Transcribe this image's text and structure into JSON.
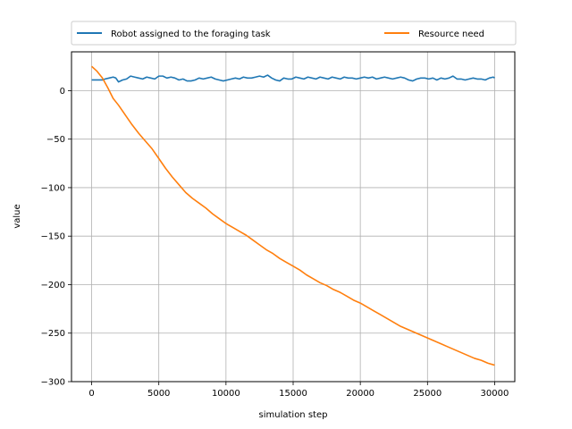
{
  "chart_data": {
    "type": "line",
    "title": "",
    "xlabel": "simulation step",
    "ylabel": "value",
    "xlim": [
      -1500,
      31500
    ],
    "ylim": [
      -300,
      40
    ],
    "grid": true,
    "legend_position": "top",
    "x_ticks": [
      0,
      5000,
      10000,
      15000,
      20000,
      25000,
      30000
    ],
    "x_tick_labels": [
      "0",
      "5000",
      "10000",
      "15000",
      "20000",
      "25000",
      "30000"
    ],
    "y_ticks": [
      0,
      -50,
      -100,
      -150,
      -200,
      -250,
      -300
    ],
    "y_tick_labels": [
      "0",
      "−50",
      "−100",
      "−150",
      "−200",
      "−250",
      "−300"
    ],
    "series": [
      {
        "name": "Robot assigned to the foraging task",
        "color": "#1f77b4",
        "x": [
          0,
          500,
          800,
          1000,
          1300,
          1600,
          1800,
          2000,
          2300,
          2600,
          2900,
          3200,
          3500,
          3800,
          4100,
          4400,
          4700,
          5000,
          5300,
          5600,
          5900,
          6200,
          6500,
          6800,
          7100,
          7400,
          7700,
          8000,
          8300,
          8600,
          8900,
          9200,
          9500,
          9800,
          10100,
          10400,
          10700,
          11000,
          11300,
          11600,
          11900,
          12200,
          12500,
          12800,
          13100,
          13400,
          13700,
          14000,
          14300,
          14600,
          14900,
          15200,
          15500,
          15800,
          16100,
          16400,
          16700,
          17000,
          17300,
          17600,
          17900,
          18200,
          18500,
          18800,
          19100,
          19400,
          19700,
          20000,
          20300,
          20600,
          20900,
          21200,
          21500,
          21800,
          22100,
          22400,
          22700,
          23000,
          23300,
          23600,
          23900,
          24200,
          24500,
          24800,
          25100,
          25400,
          25700,
          26000,
          26300,
          26600,
          26900,
          27200,
          27500,
          27800,
          28100,
          28400,
          28700,
          29000,
          29300,
          29600,
          29900,
          30000
        ],
        "values": [
          11,
          11,
          11,
          12,
          13,
          14,
          13,
          9,
          11,
          12,
          15,
          14,
          13,
          12,
          14,
          13,
          12,
          15,
          15,
          13,
          14,
          13,
          11,
          12,
          10,
          10,
          11,
          13,
          12,
          13,
          14,
          12,
          11,
          10,
          11,
          12,
          13,
          12,
          14,
          13,
          13,
          14,
          15,
          14,
          16,
          13,
          11,
          10,
          13,
          12,
          12,
          14,
          13,
          12,
          14,
          13,
          12,
          14,
          13,
          12,
          14,
          13,
          12,
          14,
          13,
          13,
          12,
          13,
          14,
          13,
          14,
          12,
          13,
          14,
          13,
          12,
          13,
          14,
          13,
          11,
          10,
          12,
          13,
          13,
          12,
          13,
          11,
          13,
          12,
          13,
          15,
          12,
          12,
          11,
          12,
          13,
          12,
          12,
          11,
          13,
          14,
          13
        ]
      },
      {
        "name": "Resource need",
        "color": "#ff7f0e",
        "x": [
          0,
          400,
          800,
          1200,
          1600,
          2000,
          2500,
          3000,
          3500,
          4000,
          4500,
          5000,
          5500,
          6000,
          6500,
          7000,
          7500,
          8000,
          8500,
          9000,
          9500,
          10000,
          10500,
          11000,
          11500,
          12000,
          12500,
          13000,
          13500,
          14000,
          14500,
          15000,
          15500,
          16000,
          16500,
          17000,
          17500,
          18000,
          18500,
          19000,
          19500,
          20000,
          20500,
          21000,
          21500,
          22000,
          22500,
          23000,
          23500,
          24000,
          24500,
          25000,
          25500,
          26000,
          26500,
          27000,
          27500,
          28000,
          28500,
          29000,
          29500,
          30000
        ],
        "values": [
          25,
          20,
          13,
          3,
          -8,
          -15,
          -25,
          -35,
          -44,
          -52,
          -60,
          -70,
          -80,
          -89,
          -97,
          -105,
          -111,
          -116,
          -121,
          -127,
          -132,
          -137,
          -141,
          -145,
          -149,
          -154,
          -159,
          -164,
          -168,
          -173,
          -177,
          -181,
          -185,
          -190,
          -194,
          -198,
          -201,
          -205,
          -208,
          -212,
          -216,
          -219,
          -223,
          -227,
          -231,
          -235,
          -239,
          -243,
          -246,
          -249,
          -252,
          -255,
          -258,
          -261,
          -264,
          -267,
          -270,
          -273,
          -276,
          -278,
          -281,
          -283
        ]
      }
    ]
  }
}
